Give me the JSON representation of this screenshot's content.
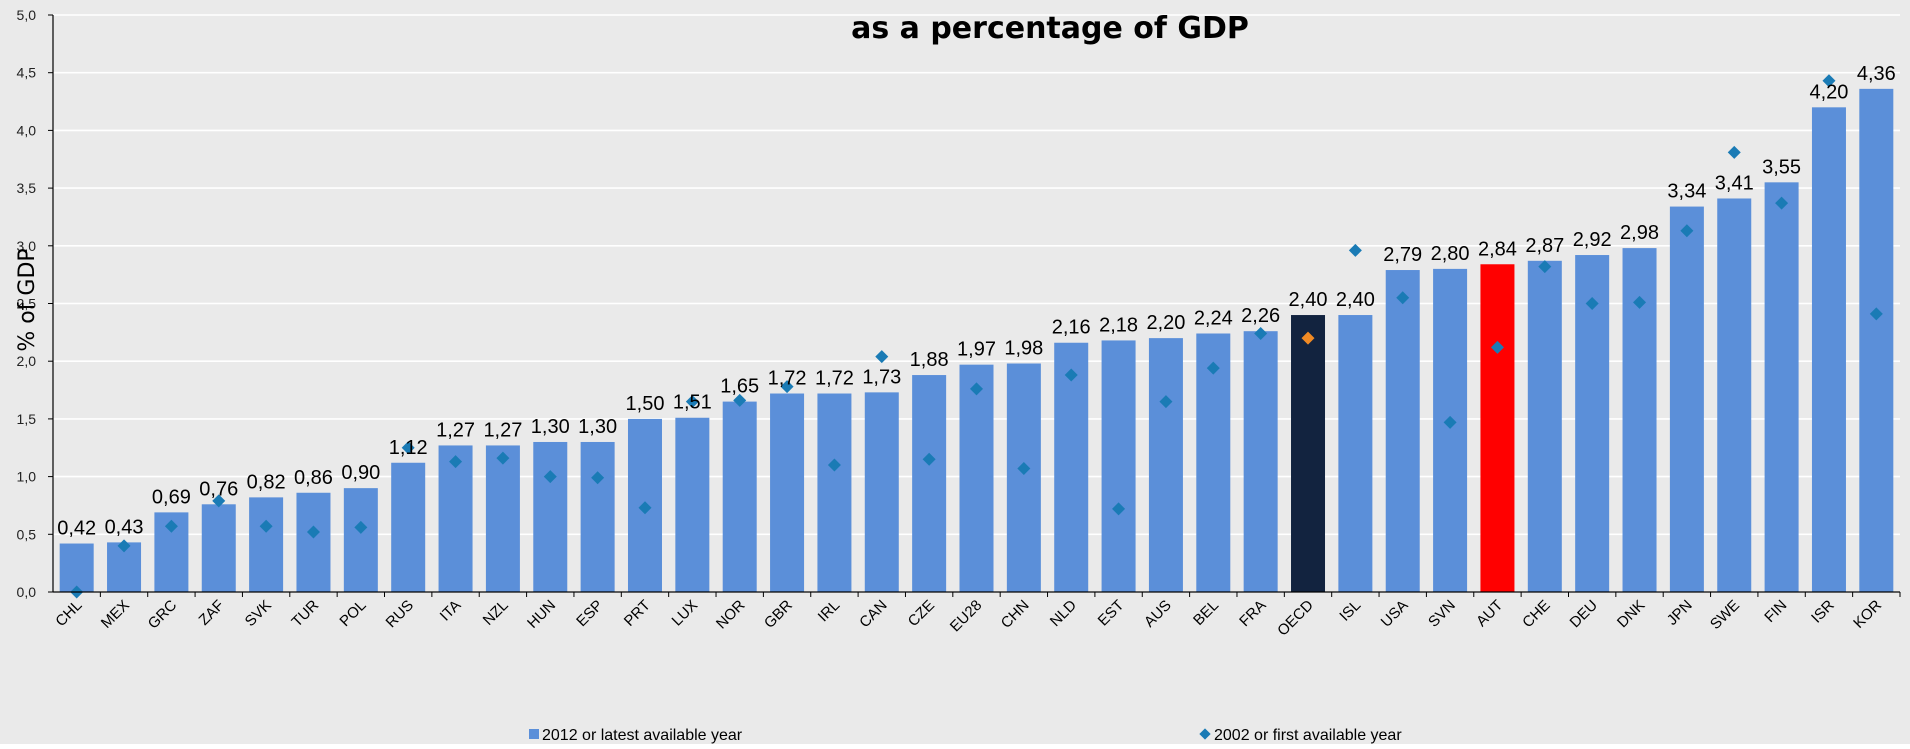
{
  "chart_data": {
    "type": "bar",
    "title": "as a percentage of GDP",
    "ylabel": "% of GDP",
    "ylim": [
      0,
      5
    ],
    "yticks": [
      "0,0",
      "0,5",
      "1,0",
      "1,5",
      "2,0",
      "2,5",
      "3,0",
      "3,5",
      "4,0",
      "4,5",
      "5,0"
    ],
    "grid": true,
    "legend_placement": "bottom",
    "categories": [
      "CHL",
      "MEX",
      "GRC",
      "ZAF",
      "SVK",
      "TUR",
      "POL",
      "RUS",
      "ITA",
      "NZL",
      "HUN",
      "ESP",
      "PRT",
      "LUX",
      "NOR",
      "GBR",
      "IRL",
      "CAN",
      "CZE",
      "EU28",
      "CHN",
      "NLD",
      "EST",
      "AUS",
      "BEL",
      "FRA",
      "OECD",
      "ISL",
      "USA",
      "SVN",
      "AUT",
      "CHE",
      "DEU",
      "DNK",
      "JPN",
      "SWE",
      "FIN",
      "ISR",
      "KOR"
    ],
    "series": [
      {
        "name": "2012 or latest available year",
        "mark": "bar",
        "values": [
          0.42,
          0.43,
          0.69,
          0.76,
          0.82,
          0.86,
          0.9,
          1.12,
          1.27,
          1.27,
          1.3,
          1.3,
          1.5,
          1.51,
          1.65,
          1.72,
          1.72,
          1.73,
          1.88,
          1.97,
          1.98,
          2.16,
          2.18,
          2.2,
          2.24,
          2.26,
          2.4,
          2.4,
          2.79,
          2.8,
          2.84,
          2.87,
          2.92,
          2.98,
          3.34,
          3.41,
          3.55,
          4.2,
          4.36
        ],
        "labels": [
          "0,42",
          "0,43",
          "0,69",
          "0,76",
          "0,82",
          "0,86",
          "0,90",
          "1,12",
          "1,27",
          "1,27",
          "1,30",
          "1,30",
          "1,50",
          "1,51",
          "1,65",
          "1,72",
          "1,72",
          "1,73",
          "1,88",
          "1,97",
          "1,98",
          "2,16",
          "2,18",
          "2,20",
          "2,24",
          "2,26",
          "2,40",
          "2,40",
          "2,79",
          "2,80",
          "2,84",
          "2,87",
          "2,92",
          "2,98",
          "3,34",
          "3,41",
          "3,55",
          "4,20",
          "4,36"
        ]
      },
      {
        "name": "2002 or first available year",
        "mark": "diamond",
        "values": [
          0.0,
          0.4,
          0.57,
          0.79,
          0.57,
          0.52,
          0.56,
          1.25,
          1.13,
          1.16,
          1.0,
          0.99,
          0.73,
          1.65,
          1.66,
          1.78,
          1.1,
          2.04,
          1.15,
          1.76,
          1.07,
          1.88,
          0.72,
          1.65,
          1.94,
          2.24,
          2.2,
          2.96,
          2.55,
          1.47,
          2.12,
          2.82,
          2.5,
          2.51,
          3.13,
          3.81,
          3.37,
          4.43,
          2.41
        ]
      }
    ]
  },
  "colors": {
    "bar": "#5B8FD9",
    "oecd_bar": "#12233F",
    "aut_bar": "#FF0000",
    "diamond": "#1A7BB5",
    "oecd_diamond": "#F08A24",
    "aut_label": "#FF0000",
    "plot_bg": "#EAEAEA",
    "grid": "#FFFFFF"
  },
  "highlight": {
    "oecd": "OECD",
    "aut": "AUT"
  }
}
